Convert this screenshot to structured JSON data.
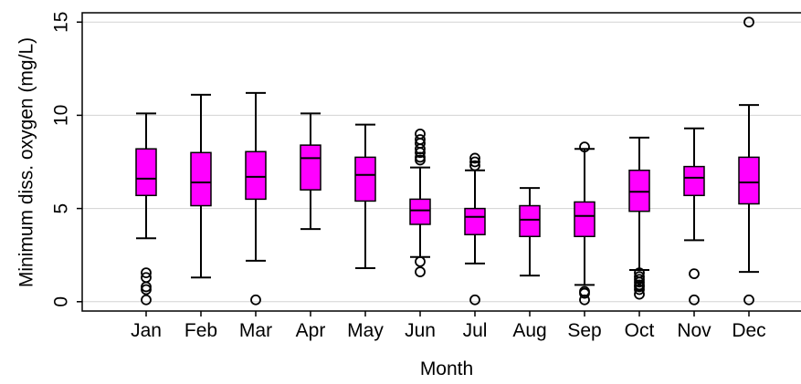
{
  "chart_data": {
    "type": "box",
    "x_label": "Month",
    "y_label": "Minimum diss. oxygen (mg/L)",
    "categories": [
      "Jan",
      "Feb",
      "Mar",
      "Apr",
      "May",
      "Jun",
      "Jul",
      "Aug",
      "Sep",
      "Oct",
      "Nov",
      "Dec"
    ],
    "color": "#ff00ff",
    "grid": true,
    "ylim": [
      -0.5,
      15.5
    ],
    "yticks": [
      0,
      5,
      10,
      15
    ],
    "boxes": [
      {
        "whisker_low": 3.4,
        "q1": 5.7,
        "median": 6.6,
        "q3": 8.2,
        "whisker_high": 10.1,
        "outliers": [
          1.55,
          1.3,
          0.8,
          0.65,
          0.1
        ]
      },
      {
        "whisker_low": 1.3,
        "q1": 5.15,
        "median": 6.4,
        "q3": 8.0,
        "whisker_high": 11.1,
        "outliers": []
      },
      {
        "whisker_low": 2.2,
        "q1": 5.5,
        "median": 6.7,
        "q3": 8.05,
        "whisker_high": 11.2,
        "outliers": [
          0.1
        ]
      },
      {
        "whisker_low": 3.9,
        "q1": 6.0,
        "median": 7.7,
        "q3": 8.4,
        "whisker_high": 10.1,
        "outliers": []
      },
      {
        "whisker_low": 1.8,
        "q1": 5.4,
        "median": 6.8,
        "q3": 7.75,
        "whisker_high": 9.5,
        "outliers": []
      },
      {
        "whisker_low": 2.4,
        "q1": 4.15,
        "median": 4.9,
        "q3": 5.5,
        "whisker_high": 7.2,
        "outliers": [
          9.0,
          8.7,
          8.5,
          8.2,
          8.0,
          7.75,
          7.6,
          2.15,
          1.6
        ]
      },
      {
        "whisker_low": 2.05,
        "q1": 3.6,
        "median": 4.55,
        "q3": 5.0,
        "whisker_high": 7.05,
        "outliers": [
          7.7,
          7.5,
          7.3,
          0.1
        ]
      },
      {
        "whisker_low": 1.4,
        "q1": 3.5,
        "median": 4.4,
        "q3": 5.15,
        "whisker_high": 6.1,
        "outliers": []
      },
      {
        "whisker_low": 0.9,
        "q1": 3.5,
        "median": 4.6,
        "q3": 5.35,
        "whisker_high": 8.2,
        "outliers": [
          8.3,
          0.55,
          0.45,
          0.1
        ]
      },
      {
        "whisker_low": 1.7,
        "q1": 4.85,
        "median": 5.9,
        "q3": 7.05,
        "whisker_high": 8.8,
        "outliers": [
          1.55,
          1.35,
          1.2,
          1.05,
          0.9,
          0.8,
          0.65,
          0.4
        ]
      },
      {
        "whisker_low": 3.3,
        "q1": 5.7,
        "median": 6.65,
        "q3": 7.25,
        "whisker_high": 9.3,
        "outliers": [
          1.5,
          0.1
        ]
      },
      {
        "whisker_low": 1.6,
        "q1": 5.25,
        "median": 6.4,
        "q3": 7.75,
        "whisker_high": 10.55,
        "outliers": [
          15.0,
          0.1
        ]
      }
    ]
  }
}
